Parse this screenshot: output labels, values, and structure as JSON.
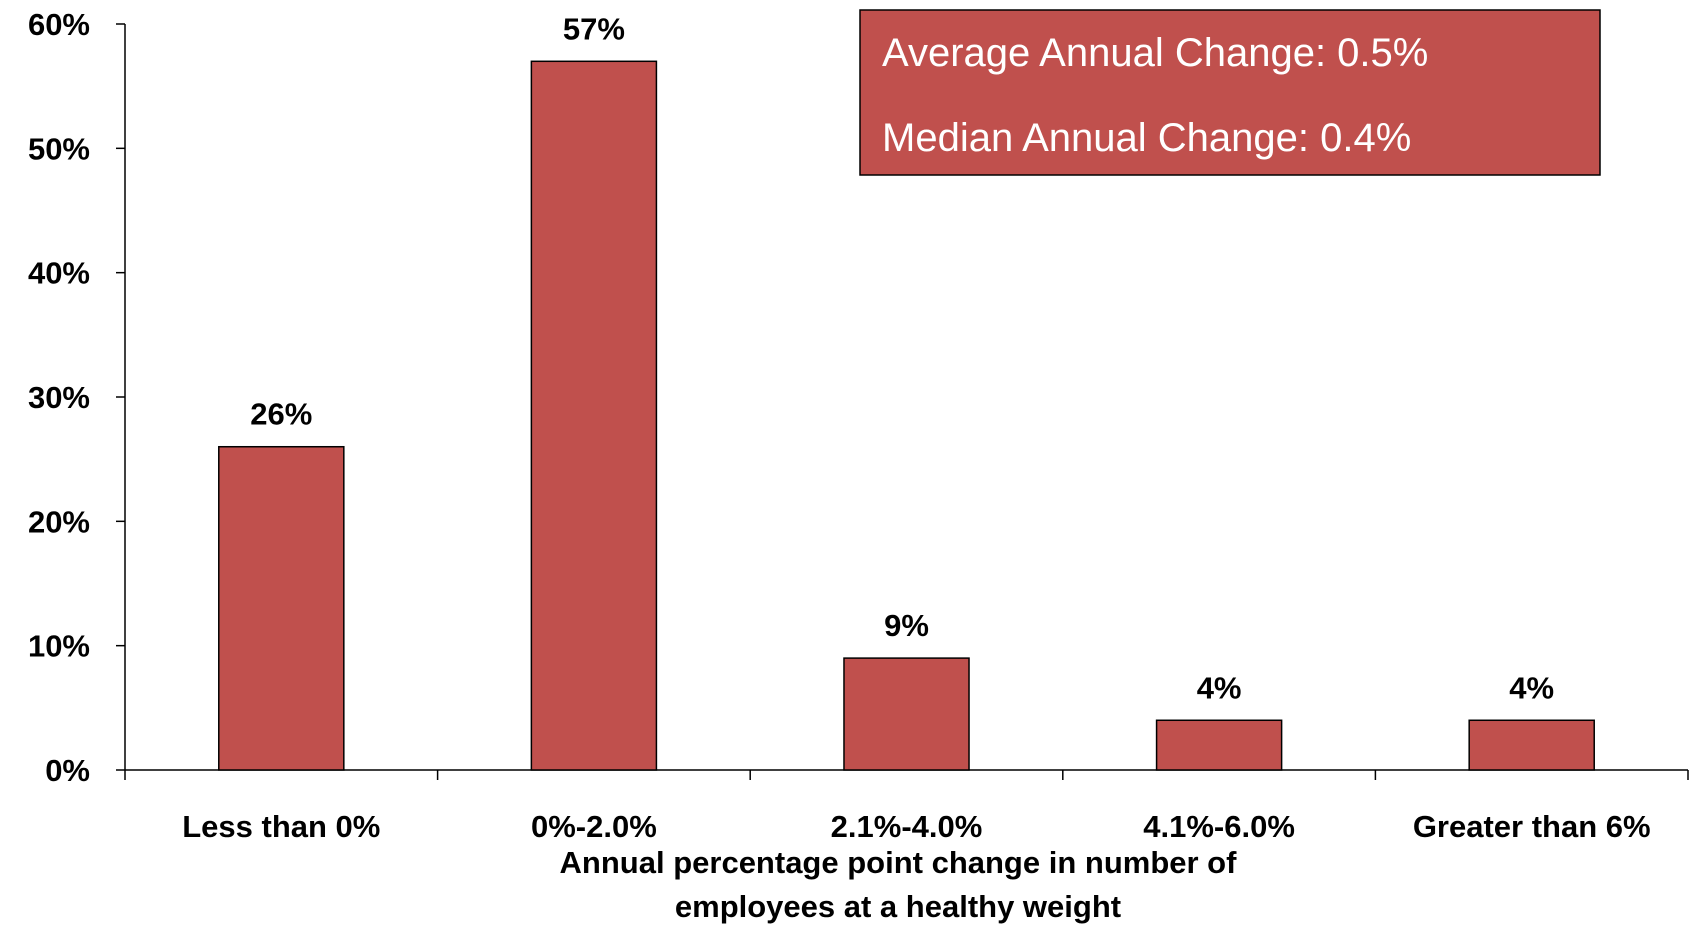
{
  "chart_data": {
    "type": "bar",
    "categories": [
      "Less than 0%",
      "0%-2.0%",
      "2.1%-4.0%",
      "4.1%-6.0%",
      "Greater than 6%"
    ],
    "values": [
      26,
      57,
      9,
      4,
      4
    ],
    "data_labels": [
      "26%",
      "57%",
      "9%",
      "4%",
      "4%"
    ],
    "title": "",
    "xlabel_lines": [
      "Annual percentage point change in number of",
      "employees at a healthy weight"
    ],
    "ylabel": "",
    "ylim": [
      0,
      60
    ],
    "yticks": [
      0,
      10,
      20,
      30,
      40,
      50,
      60
    ],
    "ytick_labels": [
      "0%",
      "10%",
      "20%",
      "30%",
      "40%",
      "50%",
      "60%"
    ],
    "grid": false,
    "legend": "none",
    "bar_color": "#c0504d",
    "annotation_box": {
      "lines": [
        "Average Annual Change: 0.5%",
        "Median Annual Change: 0.4%"
      ],
      "fill_color": "#c0504d",
      "text_color": "#ffffff"
    }
  }
}
